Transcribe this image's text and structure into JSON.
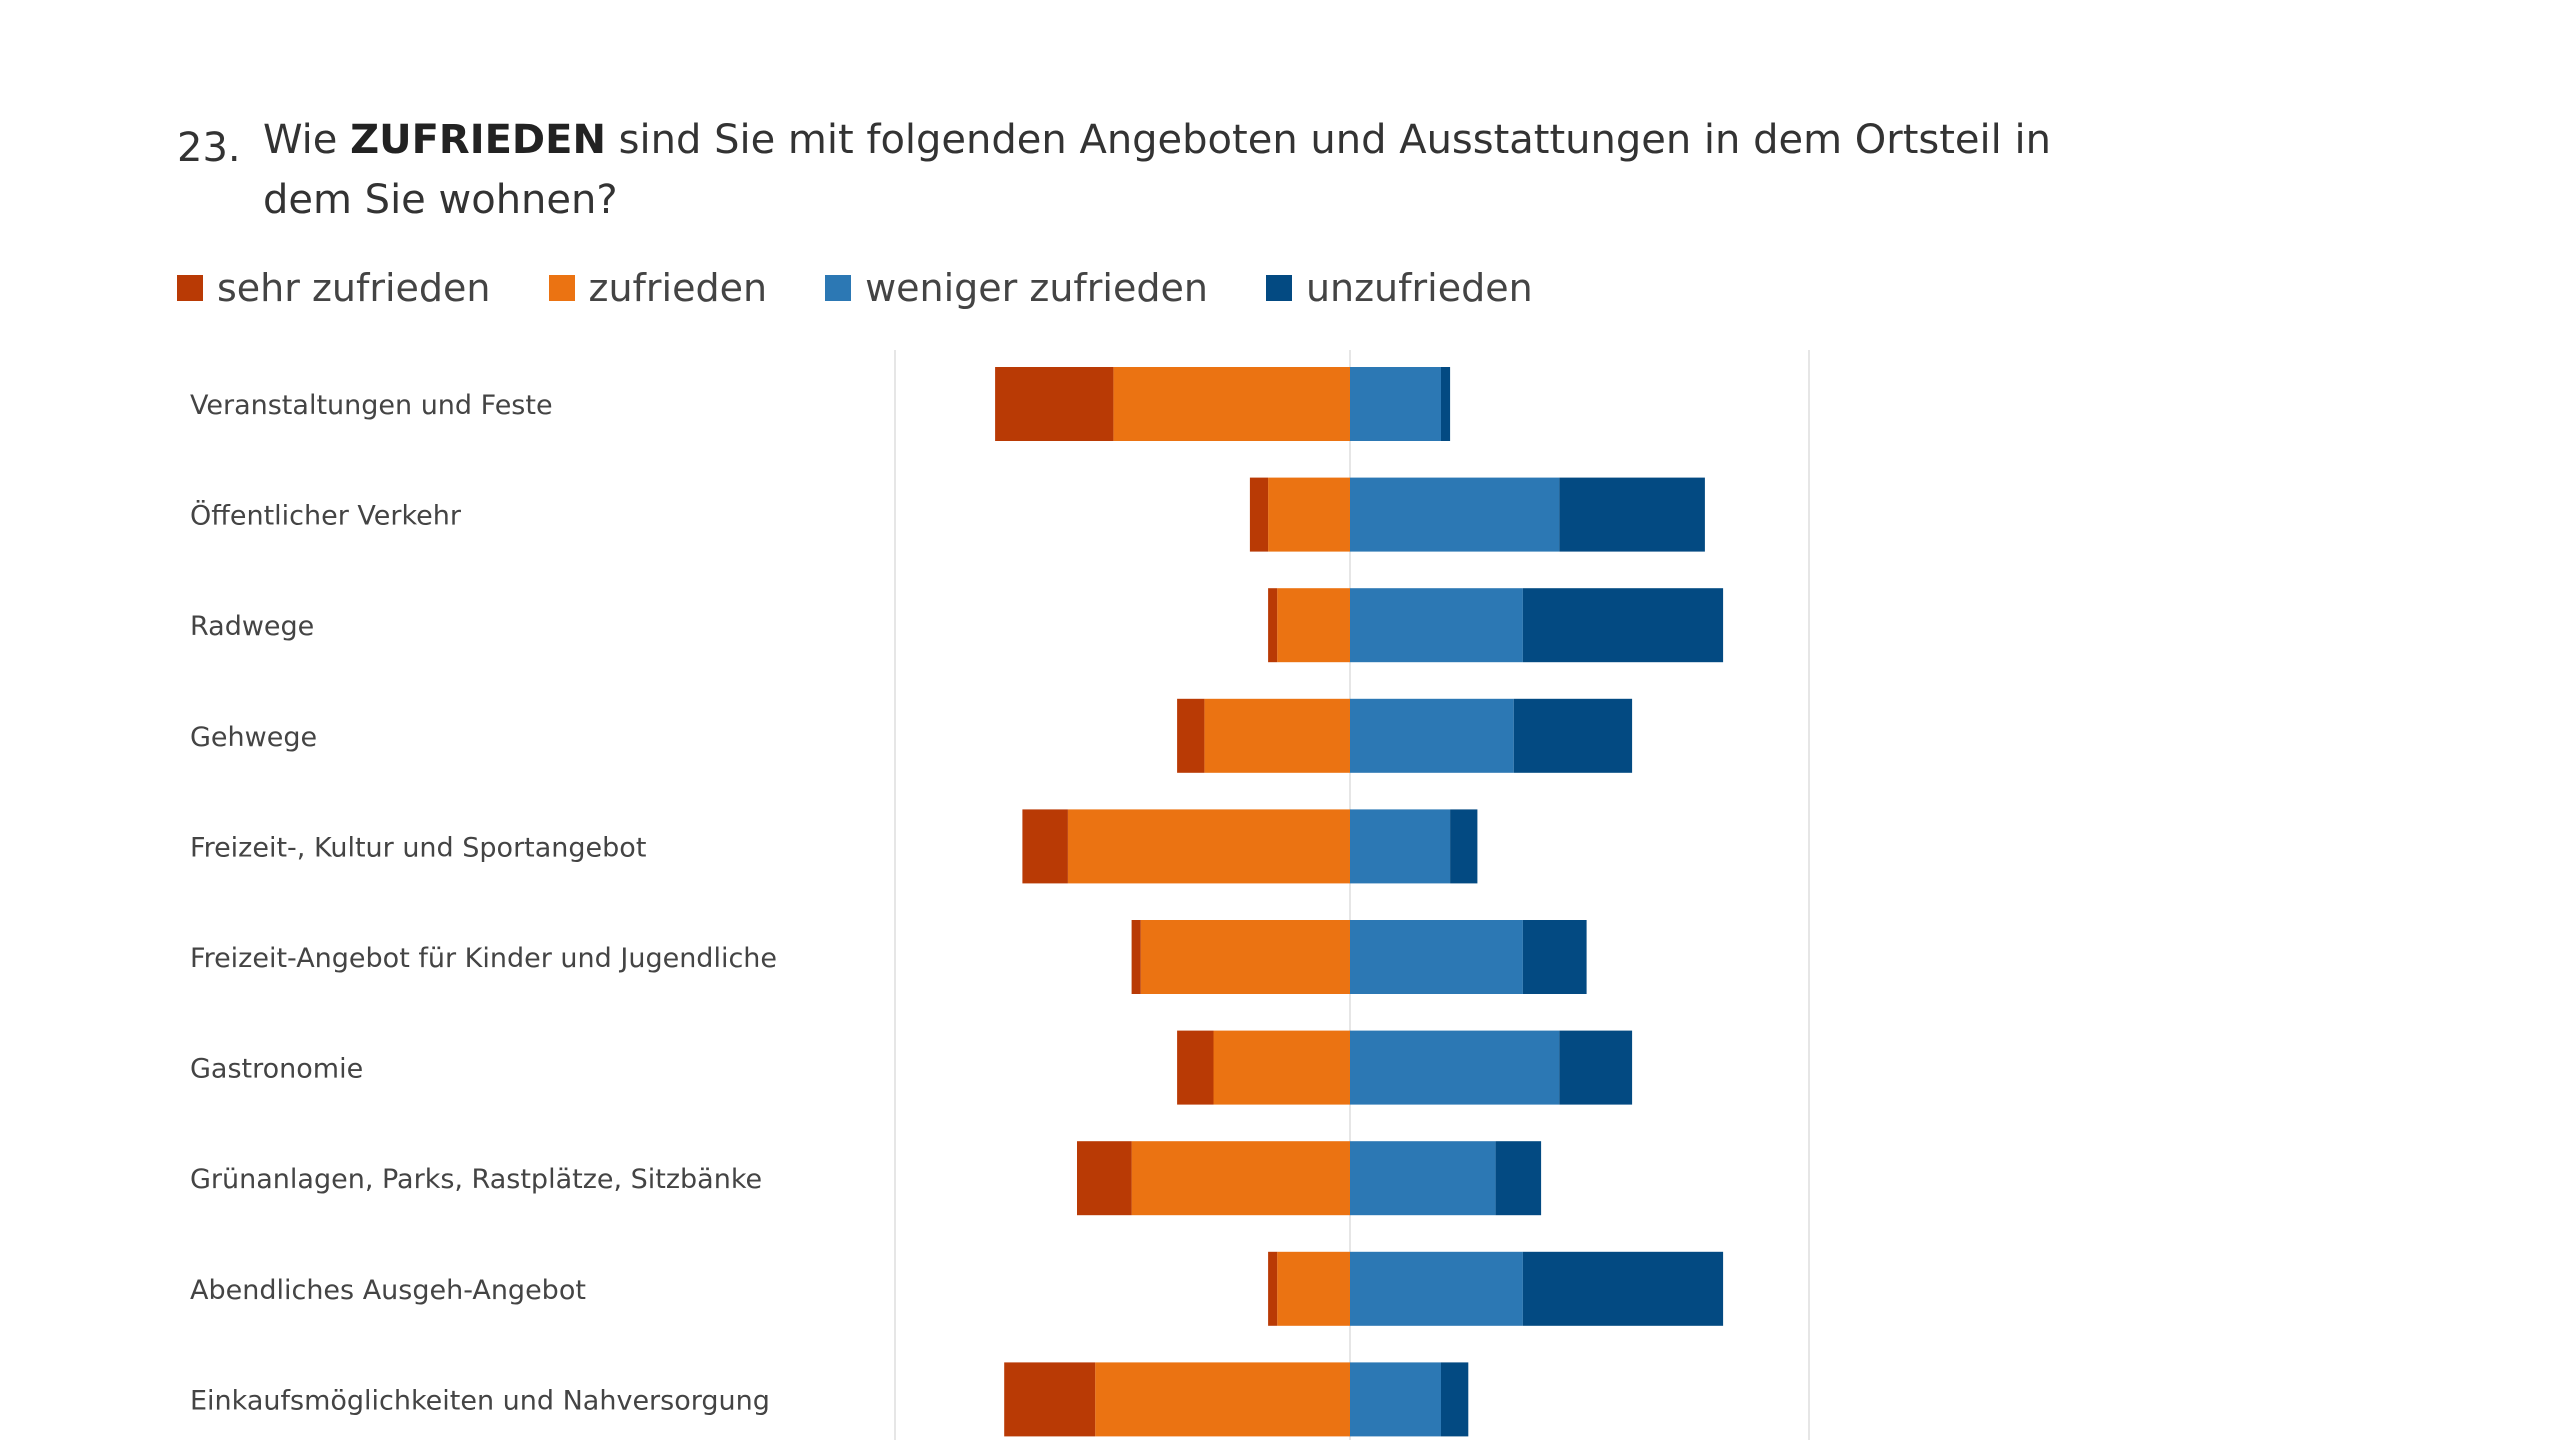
{
  "question": {
    "number": "23.",
    "text_before": "Wie ",
    "text_bold": "ZUFRIEDEN",
    "text_after": " sind Sie mit folgenden Angeboten und Ausstattungen in dem Ortsteil in dem Sie wohnen?"
  },
  "colors": {
    "sehr_zufrieden": "#B93A05",
    "zufrieden": "#EB7312",
    "weniger_zufrieden": "#2C78B4",
    "unzufrieden": "#034A82",
    "gridline": "#E6E6E6",
    "label": "#444444"
  },
  "chart_data": {
    "type": "bar",
    "orientation": "horizontal",
    "stacking": "diverging",
    "categories": [
      "Veranstaltungen und Feste",
      "Öffentlicher Verkehr",
      "Radwege",
      "Gehwege",
      "Freizeit-, Kultur und Sportangebot",
      "Freizeit-Angebot für Kinder und Jugendliche",
      "Gastronomie",
      "Grünanlagen, Parks, Rastplätze, Sitzbänke",
      "Abendliches Ausgeh-Angebot",
      "Einkaufsmöglichkeiten und Nahversorgung"
    ],
    "series": [
      {
        "name": "sehr zufrieden",
        "side": "negative",
        "values": [
          13,
          2,
          1,
          3,
          5,
          1,
          4,
          6,
          1,
          10
        ]
      },
      {
        "name": "zufrieden",
        "side": "negative",
        "values": [
          26,
          9,
          8,
          16,
          31,
          23,
          15,
          24,
          8,
          28
        ]
      },
      {
        "name": "weniger zufrieden",
        "side": "positive",
        "values": [
          10,
          23,
          19,
          18,
          11,
          19,
          23,
          16,
          19,
          10
        ]
      },
      {
        "name": "unzufrieden",
        "side": "positive",
        "values": [
          1,
          16,
          22,
          13,
          3,
          7,
          8,
          5,
          22,
          3
        ]
      }
    ],
    "xlim": [
      -50,
      50
    ],
    "grid": true,
    "legend_position": "top-left",
    "title": "",
    "xlabel": "",
    "ylabel": ""
  }
}
